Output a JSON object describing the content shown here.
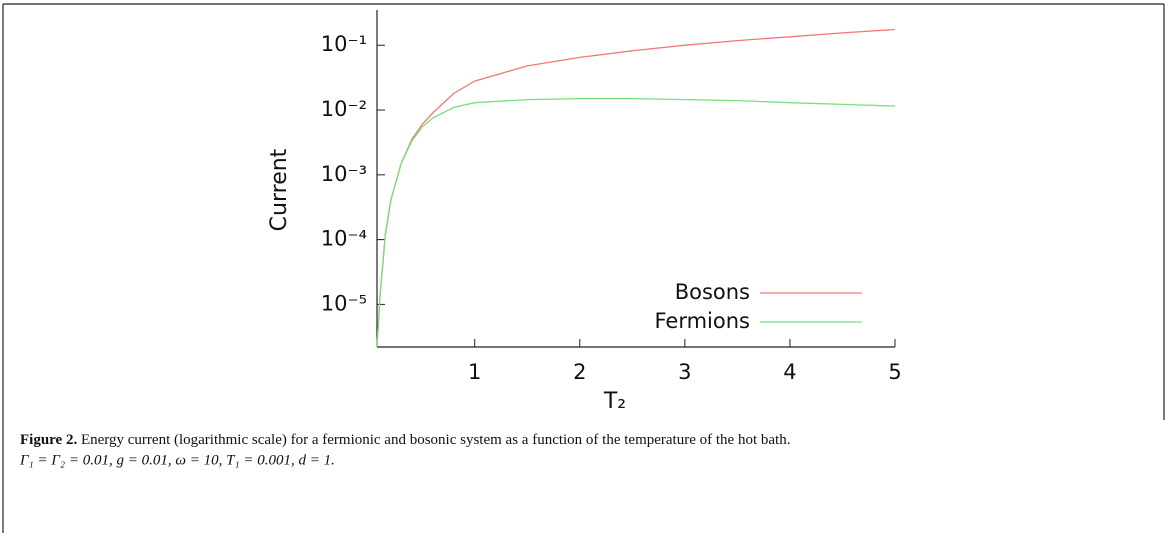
{
  "chart_data": {
    "type": "line",
    "xlabel": "T₂",
    "ylabel": "Current",
    "x": [
      0.07,
      0.1,
      0.15,
      0.2,
      0.3,
      0.4,
      0.5,
      0.6,
      0.8,
      1,
      1.5,
      2,
      2.5,
      3,
      3.5,
      4,
      4.5,
      5
    ],
    "series": [
      {
        "name": "Bosons",
        "color": "#f07878",
        "values": [
          2.2e-06,
          1.5e-05,
          0.00012,
          0.0004,
          0.0015,
          0.0035,
          0.006,
          0.009,
          0.018,
          0.028,
          0.048,
          0.065,
          0.082,
          0.1,
          0.118,
          0.135,
          0.155,
          0.175
        ]
      },
      {
        "name": "Fermions",
        "color": "#78e078",
        "values": [
          2.2e-06,
          1.5e-05,
          0.00012,
          0.0004,
          0.0015,
          0.0033,
          0.0055,
          0.0075,
          0.011,
          0.013,
          0.0145,
          0.015,
          0.015,
          0.0145,
          0.014,
          0.013,
          0.0122,
          0.0115
        ]
      }
    ],
    "xlim": [
      0.07,
      5
    ],
    "xticks": [
      1,
      2,
      3,
      4,
      5
    ],
    "ylim": [
      2.2e-06,
      0.35
    ],
    "ylog": true,
    "yticks": [
      {
        "value": 0.1,
        "label": "10⁻¹"
      },
      {
        "value": 0.01,
        "label": "10⁻²"
      },
      {
        "value": 0.001,
        "label": "10⁻³"
      },
      {
        "value": 0.0001,
        "label": "10⁻⁴"
      },
      {
        "value": 1e-05,
        "label": "10⁻⁵"
      }
    ],
    "legend": "lower right"
  },
  "caption": {
    "label": "Figure 2.",
    "text": " Energy current (logarithmic scale) for a fermionic and bosonic system as a function of the temperature of the hot bath.",
    "params": "Γ₁ = Γ₂ = 0.01,  g = 0.01,  ω = 10, T₁ = 0.001, d = 1."
  }
}
